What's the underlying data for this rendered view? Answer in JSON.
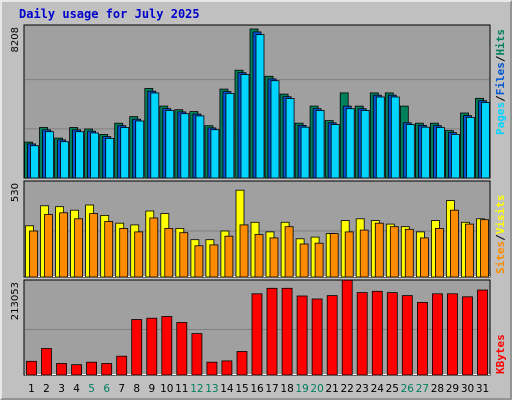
{
  "chart_data": [
    {
      "panel": "hits",
      "type": "bar",
      "title": "Daily usage for July 2025",
      "ymax_label": "8208",
      "ylim": [
        0,
        8208
      ],
      "categories": [
        "1",
        "2",
        "3",
        "4",
        "5",
        "6",
        "7",
        "8",
        "9",
        "10",
        "11",
        "12",
        "13",
        "14",
        "15",
        "16",
        "17",
        "18",
        "19",
        "20",
        "21",
        "22",
        "23",
        "24",
        "25",
        "26",
        "27",
        "28",
        "29",
        "30",
        "31"
      ],
      "series": [
        {
          "name": "Hits",
          "color": "#00805c",
          "values": [
            1980,
            2780,
            2200,
            2780,
            2700,
            2400,
            3020,
            3380,
            4930,
            3960,
            3760,
            3660,
            2880,
            4900,
            5940,
            8208,
            5600,
            4620,
            3020,
            3960,
            3160,
            4690,
            3960,
            4690,
            4690,
            3960,
            3020,
            3020,
            2610,
            3580,
            4390
          ]
        },
        {
          "name": "Files",
          "color": "#0055d4",
          "values": [
            1880,
            2650,
            2100,
            2650,
            2580,
            2280,
            2880,
            3240,
            4780,
            3820,
            3640,
            3520,
            2760,
            4760,
            5800,
            8050,
            5460,
            4480,
            2900,
            3820,
            3040,
            3960,
            3820,
            4560,
            4560,
            3040,
            2900,
            2880,
            2500,
            3440,
            4260
          ]
        },
        {
          "name": "Pages",
          "color": "#00d4ff",
          "values": [
            1780,
            2550,
            2000,
            2550,
            2480,
            2180,
            2780,
            3140,
            4680,
            3720,
            3540,
            3420,
            2660,
            4660,
            5700,
            7900,
            5360,
            4380,
            2800,
            3720,
            2940,
            3820,
            3720,
            4460,
            4460,
            2940,
            2800,
            2780,
            2400,
            3340,
            4160
          ]
        }
      ],
      "right_labels": [
        "Pages",
        "Files",
        "Hits"
      ]
    },
    {
      "panel": "visits",
      "type": "bar",
      "ymax_label": "530",
      "ylim": [
        0,
        530
      ],
      "categories": [
        "1",
        "2",
        "3",
        "4",
        "5",
        "6",
        "7",
        "8",
        "9",
        "10",
        "11",
        "12",
        "13",
        "14",
        "15",
        "16",
        "17",
        "18",
        "19",
        "20",
        "21",
        "22",
        "23",
        "24",
        "25",
        "26",
        "27",
        "28",
        "29",
        "30",
        "31"
      ],
      "series": [
        {
          "name": "Visits",
          "color": "#ffff00",
          "values": [
            295,
            410,
            405,
            385,
            415,
            355,
            310,
            300,
            380,
            365,
            280,
            215,
            215,
            265,
            500,
            315,
            260,
            315,
            220,
            230,
            250,
            325,
            335,
            325,
            305,
            290,
            260,
            325,
            440,
            315,
            335
          ]
        },
        {
          "name": "Sites",
          "color": "#ff8c00",
          "values": [
            265,
            360,
            370,
            335,
            365,
            320,
            280,
            260,
            340,
            280,
            255,
            180,
            185,
            235,
            300,
            245,
            225,
            290,
            190,
            195,
            250,
            260,
            270,
            310,
            290,
            275,
            225,
            280,
            385,
            305,
            330
          ]
        }
      ],
      "right_labels": [
        "Sites",
        "Visits"
      ]
    },
    {
      "panel": "kbytes",
      "type": "bar",
      "ymax_label": "213053",
      "ylim": [
        0,
        213053
      ],
      "categories": [
        "1",
        "2",
        "3",
        "4",
        "5",
        "6",
        "7",
        "8",
        "9",
        "10",
        "11",
        "12",
        "13",
        "14",
        "15",
        "16",
        "17",
        "18",
        "19",
        "20",
        "21",
        "22",
        "23",
        "24",
        "25",
        "26",
        "27",
        "28",
        "29",
        "30",
        "31"
      ],
      "series": [
        {
          "name": "KBytes",
          "color": "#ff0000",
          "values": [
            32000,
            62000,
            27000,
            24000,
            30000,
            27000,
            44000,
            130000,
            133000,
            137000,
            123000,
            97000,
            30000,
            33000,
            55000,
            190000,
            203000,
            203000,
            185000,
            178000,
            186000,
            222000,
            193000,
            196000,
            193000,
            186000,
            170000,
            190000,
            190000,
            183000,
            199000
          ]
        }
      ],
      "right_labels": [
        "KBytes"
      ]
    }
  ],
  "weekend_days": [
    "5",
    "6",
    "12",
    "13",
    "19",
    "20",
    "26",
    "27"
  ],
  "colors": {
    "frame": "#c0c0c0",
    "plot": "#a0a0a0",
    "title": "#0000cc",
    "weekday_label": "#000000",
    "weekend_label": "#00805c",
    "grid": "#808080",
    "slash": "#000000"
  }
}
